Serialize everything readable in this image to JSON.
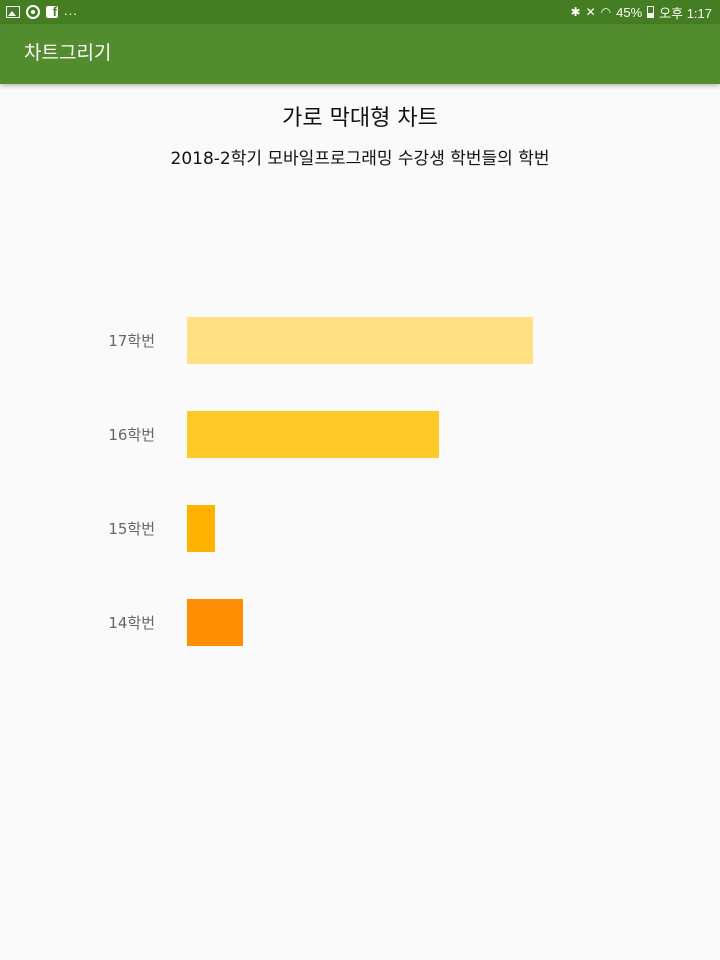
{
  "status_bar": {
    "battery": "45%",
    "time": "오후 1:17",
    "more": "..."
  },
  "app_bar": {
    "title": "차트그리기"
  },
  "chart_data": {
    "type": "bar",
    "orientation": "horizontal",
    "title": "가로 막대형 차트",
    "subtitle": "2018-2학기 모바일프로그래밍 수강생 학번들의 학번",
    "categories": [
      "17학번",
      "16학번",
      "15학번",
      "14학번"
    ],
    "values": [
      37,
      27,
      3,
      6
    ],
    "colors": [
      "#ffe082",
      "#ffca28",
      "#ffb300",
      "#ff8f00"
    ],
    "xlim": [
      0,
      40
    ],
    "grid": false,
    "legend": "none"
  }
}
